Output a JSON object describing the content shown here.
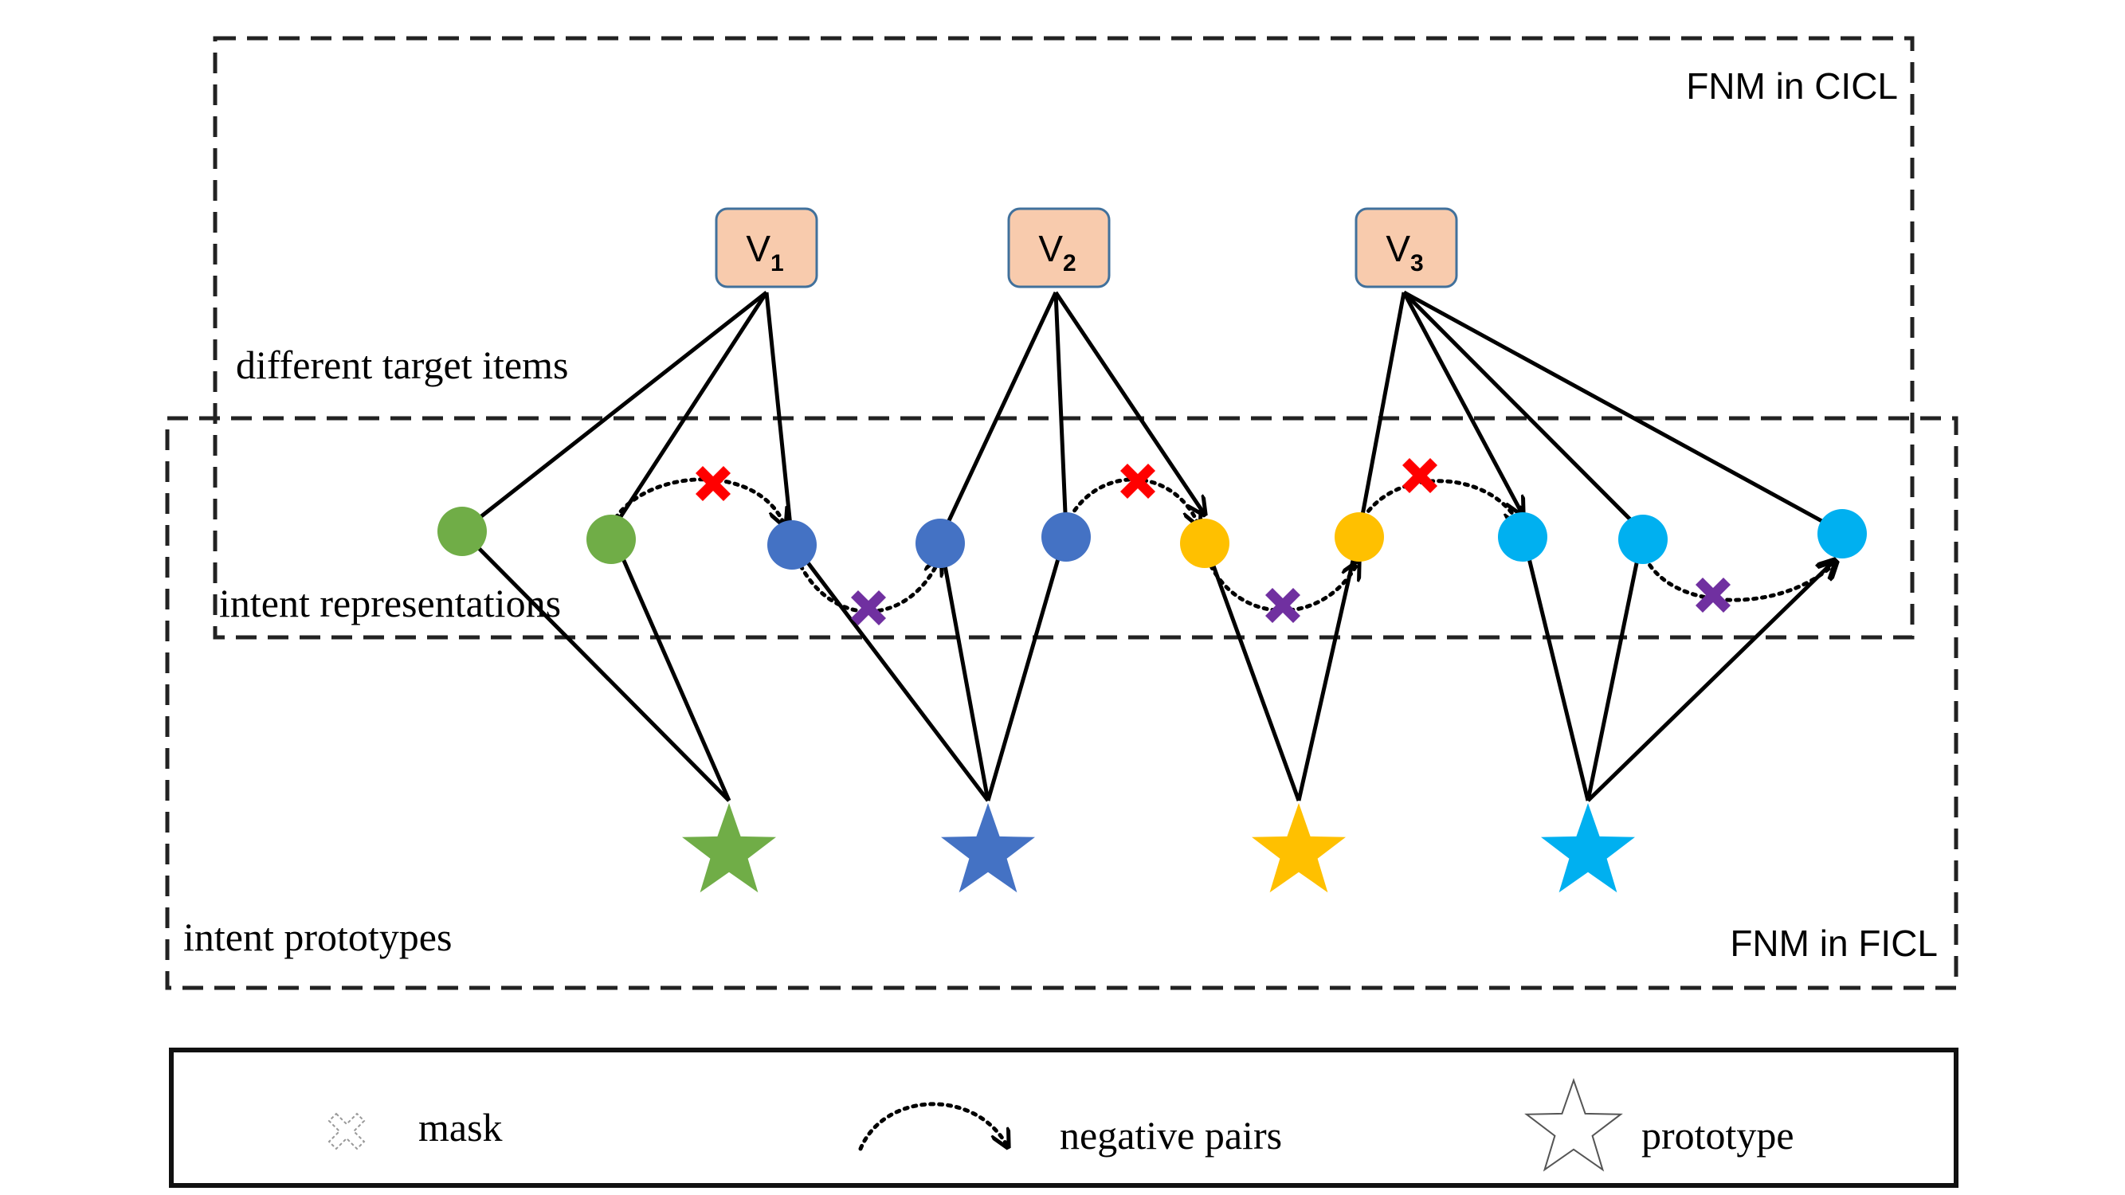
{
  "title_cicl": "FNM in CICL",
  "title_ficl": "FNM in FICL",
  "labels": {
    "target_items": "different target items",
    "representations": "intent representations",
    "prototypes": "intent prototypes"
  },
  "items": [
    {
      "letter": "V",
      "sub": "1"
    },
    {
      "letter": "V",
      "sub": "2"
    },
    {
      "letter": "V",
      "sub": "3"
    }
  ],
  "legend": {
    "mask": "mask",
    "negative_pairs": "negative pairs",
    "prototype": "prototype"
  },
  "colors": {
    "green": "#70AD47",
    "blue": "#4472C4",
    "yellow": "#FFC000",
    "cyan": "#00B0F0",
    "mask_red": "#FF0000",
    "mask_purple": "#7030A0",
    "item_fill": "#F8CBAD",
    "item_border": "#41719C"
  }
}
